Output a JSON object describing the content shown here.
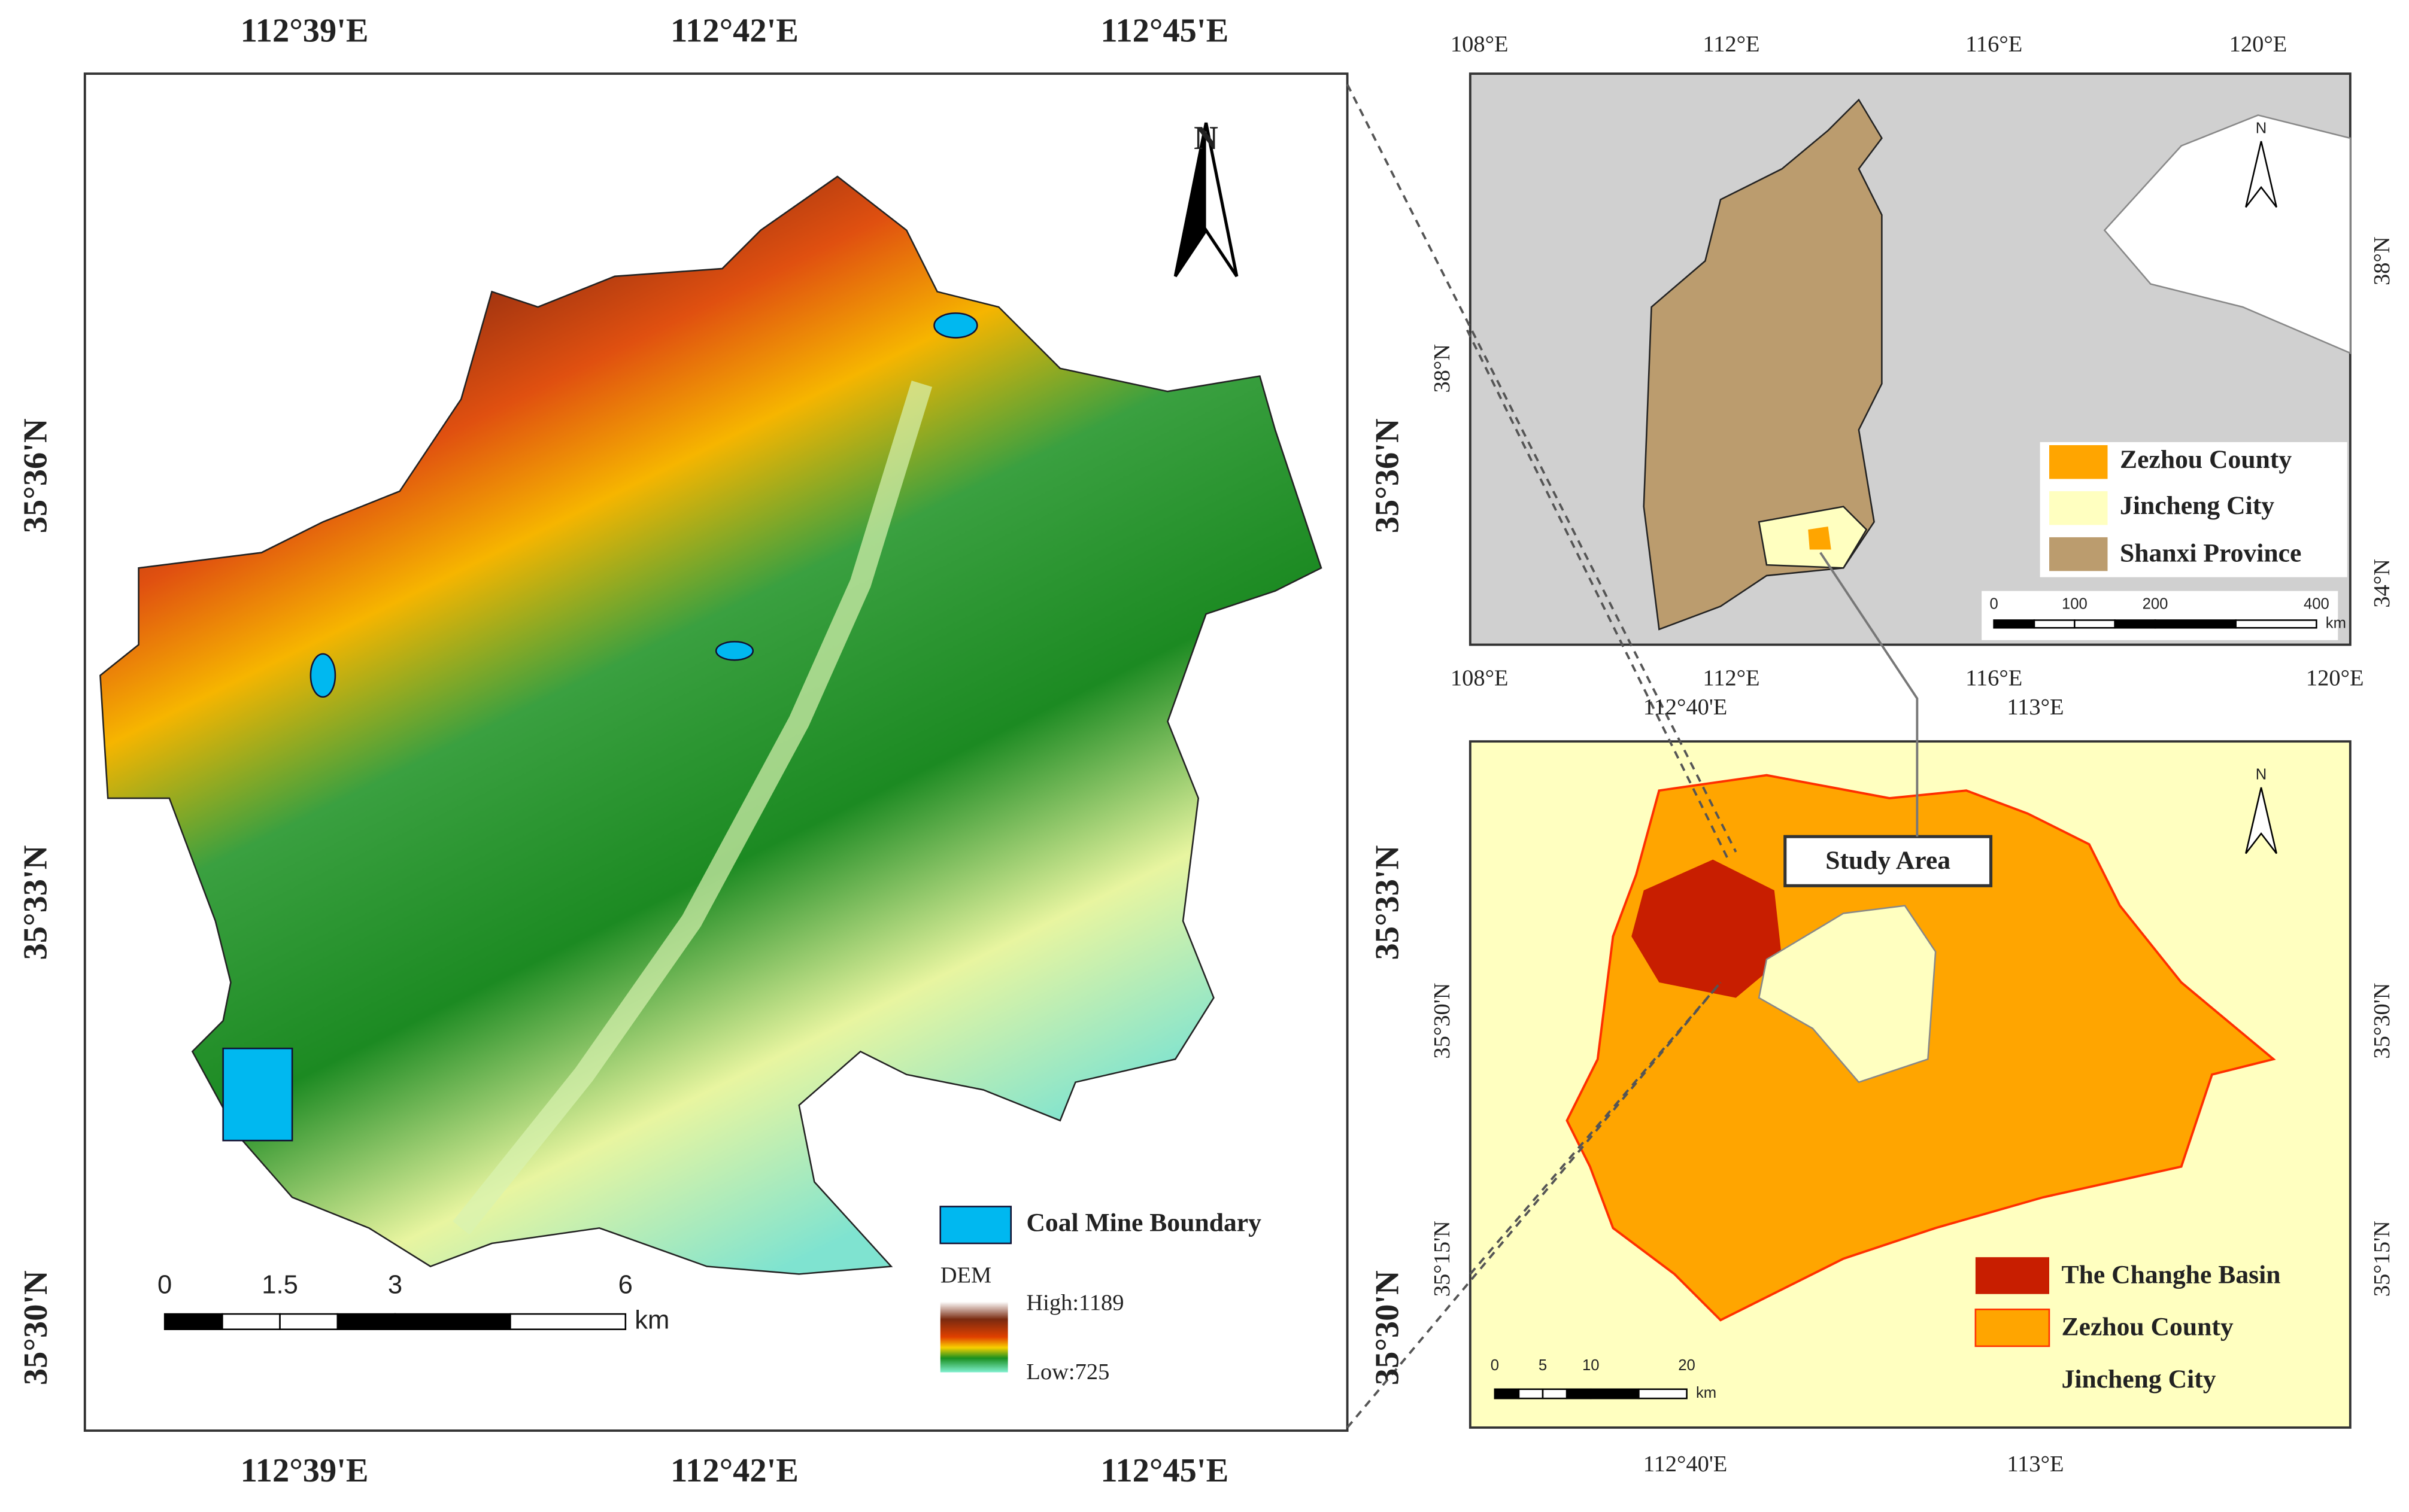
{
  "main_map": {
    "top_labels": [
      "112°39'E",
      "112°42'E",
      "112°45'E"
    ],
    "bottom_labels": [
      "112°39'E",
      "112°42'E",
      "112°45'E"
    ],
    "left_labels": [
      "35°36'N",
      "35°33'N",
      "35°30'N"
    ],
    "right_labels": [
      "35°36'N",
      "35°33'N",
      "35°30'N"
    ],
    "north": "N",
    "legend": {
      "coal_mine": "Coal Mine Boundary",
      "dem_title": "DEM",
      "high": "High:1189",
      "low": "Low:725"
    },
    "scale_bar": {
      "ticks": [
        0,
        1.5,
        3,
        6
      ],
      "unit": "km"
    }
  },
  "overview_map": {
    "top_labels": [
      "108°E",
      "112°E",
      "116°E",
      "120°E"
    ],
    "bottom_labels": [
      "108°E",
      "112°E",
      "116°E",
      "120°E"
    ],
    "left_labels": [
      "38°N"
    ],
    "right_labels": [
      "38°N",
      "34°N"
    ],
    "north": "N",
    "legend": [
      "Zezhou County",
      "Jincheng City",
      "Shanxi Province"
    ],
    "scale_bar": {
      "ticks": [
        0,
        100,
        200,
        400
      ],
      "unit": "km"
    }
  },
  "detail_map": {
    "top_labels": [
      "112°40'E",
      "113°E"
    ],
    "bottom_labels": [
      "112°40'E",
      "113°E"
    ],
    "left_labels": [
      "35°30'N",
      "35°15'N"
    ],
    "right_labels": [
      "35°30'N",
      "35°15'N"
    ],
    "north": "N",
    "callout": "Study Area",
    "legend": [
      "The Changhe Basin",
      "Zezhou County",
      "Jincheng City"
    ],
    "scale_bar": {
      "ticks": [
        0,
        5,
        10,
        20
      ],
      "unit": "km"
    }
  }
}
